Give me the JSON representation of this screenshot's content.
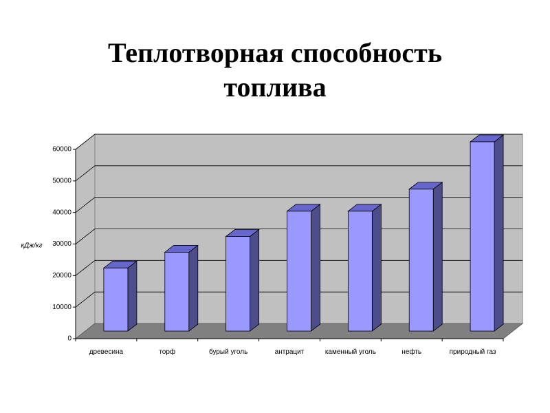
{
  "chart_data": {
    "type": "bar3d",
    "title": "Теплотворная способность топлива",
    "y_label": "кДж/кг",
    "categories": [
      "древесина",
      "торф",
      "бурый уголь",
      "антрацит",
      "каменный уголь",
      "нефть",
      "природный газ"
    ],
    "values": [
      20000,
      25000,
      30000,
      38000,
      38000,
      45000,
      60000
    ],
    "color": "#9999ff",
    "ylim": [
      0,
      60000
    ],
    "yticks": [
      0,
      10000,
      20000,
      30000,
      40000,
      50000,
      60000
    ],
    "grid": true
  }
}
